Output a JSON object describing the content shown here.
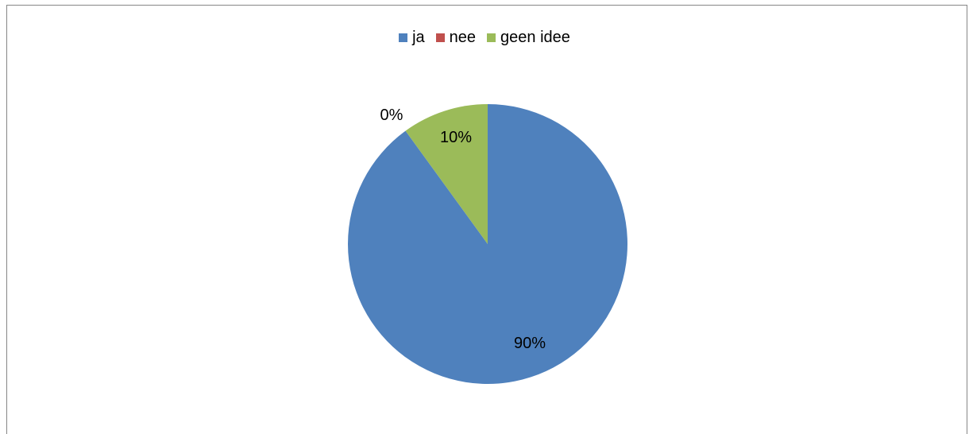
{
  "chart_data": {
    "type": "pie",
    "categories": [
      "ja",
      "nee",
      "geen idee"
    ],
    "values": [
      90,
      0,
      10
    ],
    "data_labels": [
      "90%",
      "0%",
      "10%"
    ],
    "colors": [
      "#4F81BD",
      "#C0504D",
      "#9BBB59"
    ],
    "legend_position": "top"
  }
}
